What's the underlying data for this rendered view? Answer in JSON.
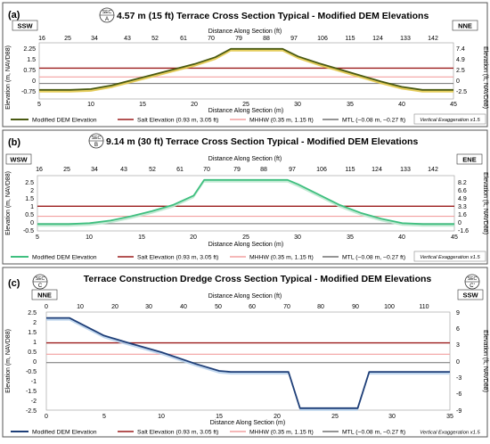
{
  "panels": [
    {
      "panel_label": "(a)",
      "section_badge": {
        "top": "SEC",
        "letter": "A"
      },
      "title": "4.57 m (15 ft) Terrace Cross Section Typical - Modified DEM Elevations",
      "dir_left": "SSW",
      "dir_right": "NNE",
      "top_axis_label": "Distance Along Section (ft)",
      "top_ticks": [
        "16",
        "25",
        "34",
        "43",
        "52",
        "61",
        "70",
        "79",
        "88",
        "97",
        "106",
        "115",
        "124",
        "133",
        "142"
      ],
      "bottom_axis_label": "Distance Along Section (m)",
      "bottom_ticks": [
        "5",
        "10",
        "15",
        "20",
        "25",
        "30",
        "35",
        "40",
        "45"
      ],
      "left_axis_label": "Elevation (m, NAVD88)",
      "left_ticks": [
        "2.25",
        "1.5",
        "0.75",
        "0",
        "-0.75"
      ],
      "right_axis_label": "Elevation (ft, NAVD88)",
      "right_ticks": [
        "7.4",
        "4.9",
        "2.5",
        "0",
        "-2.5"
      ],
      "legend": {
        "dem": "Modified DEM Elevation",
        "salt": "Salt Elevation (0.93 m, 3.05 ft)",
        "mhhw": "MHHW (0.35 m, 1.15 ft)",
        "mtl": "MTL (−0.08 m, −0.27 ft)",
        "ve": "Vertical Exaggeration x1.5"
      }
    },
    {
      "panel_label": "(b)",
      "section_badge": {
        "top": "SEC",
        "letter": "B"
      },
      "title": "9.14 m (30 ft) Terrace Cross Section Typical - Modified DEM Elevations",
      "dir_left": "WSW",
      "dir_right": "ENE",
      "top_axis_label": "Distance Along Section (ft)",
      "top_ticks": [
        "16",
        "25",
        "34",
        "43",
        "52",
        "61",
        "70",
        "79",
        "88",
        "97",
        "106",
        "115",
        "124",
        "133",
        "142"
      ],
      "bottom_axis_label": "Distance Along Section (m)",
      "bottom_ticks": [
        "5",
        "10",
        "15",
        "20",
        "25",
        "30",
        "35",
        "40",
        "45"
      ],
      "left_axis_label": "Elevation (m, NAVD88)",
      "left_ticks": [
        "2.5",
        "2",
        "1.5",
        "1",
        "0.5",
        "0",
        "-0.5"
      ],
      "right_axis_label": "Elevation (ft, NAVD88)",
      "right_ticks": [
        "8.2",
        "6.6",
        "4.9",
        "3.3",
        "1.6",
        "0",
        "-1.6"
      ],
      "legend": {
        "dem": "Modified DEM Elevation",
        "salt": "Salt Elevation (0.93 m, 3.05 ft)",
        "mhhw": "MHHW (0.35 m, 1.15 ft)",
        "mtl": "MTL (−0.08 m, −0.27 ft)",
        "ve": "Vertical Exaggeration x1.5"
      }
    },
    {
      "panel_label": "(c)",
      "section_badge_left": {
        "top": "SEC",
        "letter": "C"
      },
      "section_badge_right": {
        "top": "SEC",
        "letter": "C'"
      },
      "title": "Terrace Construction Dredge Cross Section Typical - Modified DEM Elevations",
      "dir_left": "NNE",
      "dir_right": "SSW",
      "top_axis_label": "Distance Along Section (ft)",
      "top_ticks": [
        "0",
        "10",
        "20",
        "30",
        "40",
        "50",
        "60",
        "70",
        "80",
        "90",
        "100",
        "110"
      ],
      "bottom_axis_label": "Distance Along Section (m)",
      "bottom_ticks": [
        "0",
        "5",
        "10",
        "15",
        "20",
        "25",
        "30",
        "35"
      ],
      "left_axis_label": "Elevation (m, NAVD88)",
      "left_ticks": [
        "2.5",
        "2",
        "1.5",
        "1",
        "0.5",
        "0",
        "-0.5",
        "-1",
        "-1.5",
        "-2",
        "-2.5"
      ],
      "right_axis_label": "Elevation (ft, NAVD88)",
      "right_ticks": [
        "9",
        "6",
        "3",
        "0",
        "-3",
        "-6",
        "-9"
      ],
      "legend": {
        "dem": "Modified DEM Elevation",
        "salt": "Salt Elevation (0.93 m, 3.05 ft)",
        "mhhw": "MHHW (0.35 m, 1.15 ft)",
        "mtl": "MTL (−0.08 m, −0.27 ft)",
        "ve": "Vertical Exaggeration x1.5"
      }
    }
  ],
  "colors": {
    "panel_a_dem": "#4a5a12",
    "panel_a_dem_fill": "#e2c84a",
    "panel_b_dem": "#3fbf7f",
    "panel_b_dem_fill": "#bde8cf",
    "panel_c_dem": "#1f3f78",
    "panel_c_dem_fill": "#b8d2ec",
    "salt": "#9b1c1c",
    "mhhw": "#f2a0a0",
    "mtl": "#707070",
    "frame": "#555555",
    "grid": "#d8d8d8"
  },
  "chart_data": [
    {
      "type": "area",
      "title": "4.57 m (15 ft) Terrace Cross Section Typical - Modified DEM Elevations",
      "xlabel": "Distance Along Section (m)",
      "ylabel": "Elevation (m, NAVD88)",
      "xlim": [
        5,
        45
      ],
      "ylim": [
        -1.1,
        2.6
      ],
      "grid": false,
      "legend": "bottom",
      "series": [
        {
          "name": "Modified DEM Elevation",
          "x": [
            5,
            8,
            10,
            12,
            14,
            16,
            18,
            20,
            22,
            23.5,
            25,
            27,
            28.5,
            30,
            32,
            34,
            36,
            38,
            40,
            42,
            45
          ],
          "y": [
            -0.5,
            -0.5,
            -0.45,
            -0.2,
            0.15,
            0.5,
            0.85,
            1.2,
            1.65,
            2.2,
            2.2,
            2.2,
            2.2,
            1.7,
            1.25,
            0.85,
            0.45,
            0.05,
            -0.3,
            -0.5,
            -0.5
          ]
        },
        {
          "name": "Salt Elevation (0.93 m, 3.05 ft)",
          "x": [
            5,
            45
          ],
          "y": [
            0.93,
            0.93
          ]
        },
        {
          "name": "MHHW (0.35 m, 1.15 ft)",
          "x": [
            5,
            45
          ],
          "y": [
            0.35,
            0.35
          ]
        },
        {
          "name": "MTL (−0.08 m, −0.27 ft)",
          "x": [
            5,
            45
          ],
          "y": [
            -0.08,
            -0.08
          ]
        }
      ]
    },
    {
      "type": "area",
      "title": "9.14 m (30 ft) Terrace Cross Section Typical - Modified DEM Elevations",
      "xlabel": "Distance Along Section (m)",
      "ylabel": "Elevation (m, NAVD88)",
      "xlim": [
        5,
        45
      ],
      "ylim": [
        -0.5,
        2.7
      ],
      "grid": false,
      "legend": "bottom",
      "series": [
        {
          "name": "Modified DEM Elevation",
          "x": [
            5,
            8,
            10,
            12,
            14,
            16,
            18,
            20,
            21,
            25,
            29,
            30,
            32,
            34,
            36,
            38,
            40,
            42,
            45
          ],
          "y": [
            -0.1,
            -0.1,
            -0.05,
            0.1,
            0.35,
            0.65,
            1.0,
            1.55,
            2.45,
            2.45,
            2.45,
            2.2,
            1.6,
            1.0,
            0.55,
            0.2,
            -0.05,
            -0.1,
            -0.1
          ]
        },
        {
          "name": "Salt Elevation (0.93 m, 3.05 ft)",
          "x": [
            5,
            45
          ],
          "y": [
            0.93,
            0.93
          ]
        },
        {
          "name": "MHHW (0.35 m, 1.15 ft)",
          "x": [
            5,
            45
          ],
          "y": [
            0.35,
            0.35
          ]
        },
        {
          "name": "MTL (−0.08 m, −0.27 ft)",
          "x": [
            5,
            45
          ],
          "y": [
            -0.08,
            -0.08
          ]
        }
      ]
    },
    {
      "type": "area",
      "title": "Terrace Construction Dredge Cross Section Typical - Modified DEM Elevations",
      "xlabel": "Distance Along Section (m)",
      "ylabel": "Elevation (m, NAVD88)",
      "xlim": [
        0,
        35
      ],
      "ylim": [
        -2.5,
        2.5
      ],
      "grid": false,
      "legend": "bottom",
      "series": [
        {
          "name": "Modified DEM Elevation",
          "x": [
            0,
            2,
            3,
            5,
            7,
            10,
            13,
            15,
            16,
            18,
            21,
            22,
            26,
            27,
            28,
            30,
            35
          ],
          "y": [
            2.2,
            2.2,
            1.9,
            1.3,
            0.95,
            0.45,
            -0.15,
            -0.5,
            -0.55,
            -0.55,
            -0.55,
            -2.4,
            -2.4,
            -2.4,
            -0.55,
            -0.55,
            -0.55
          ]
        },
        {
          "name": "Salt Elevation (0.93 m, 3.05 ft)",
          "x": [
            0,
            35
          ],
          "y": [
            0.93,
            0.93
          ]
        },
        {
          "name": "MHHW (0.35 m, 1.15 ft)",
          "x": [
            0,
            35
          ],
          "y": [
            0.35,
            0.35
          ]
        },
        {
          "name": "MTL (−0.08 m, −0.27 ft)",
          "x": [
            0,
            35
          ],
          "y": [
            -0.08,
            -0.08
          ]
        }
      ]
    }
  ]
}
